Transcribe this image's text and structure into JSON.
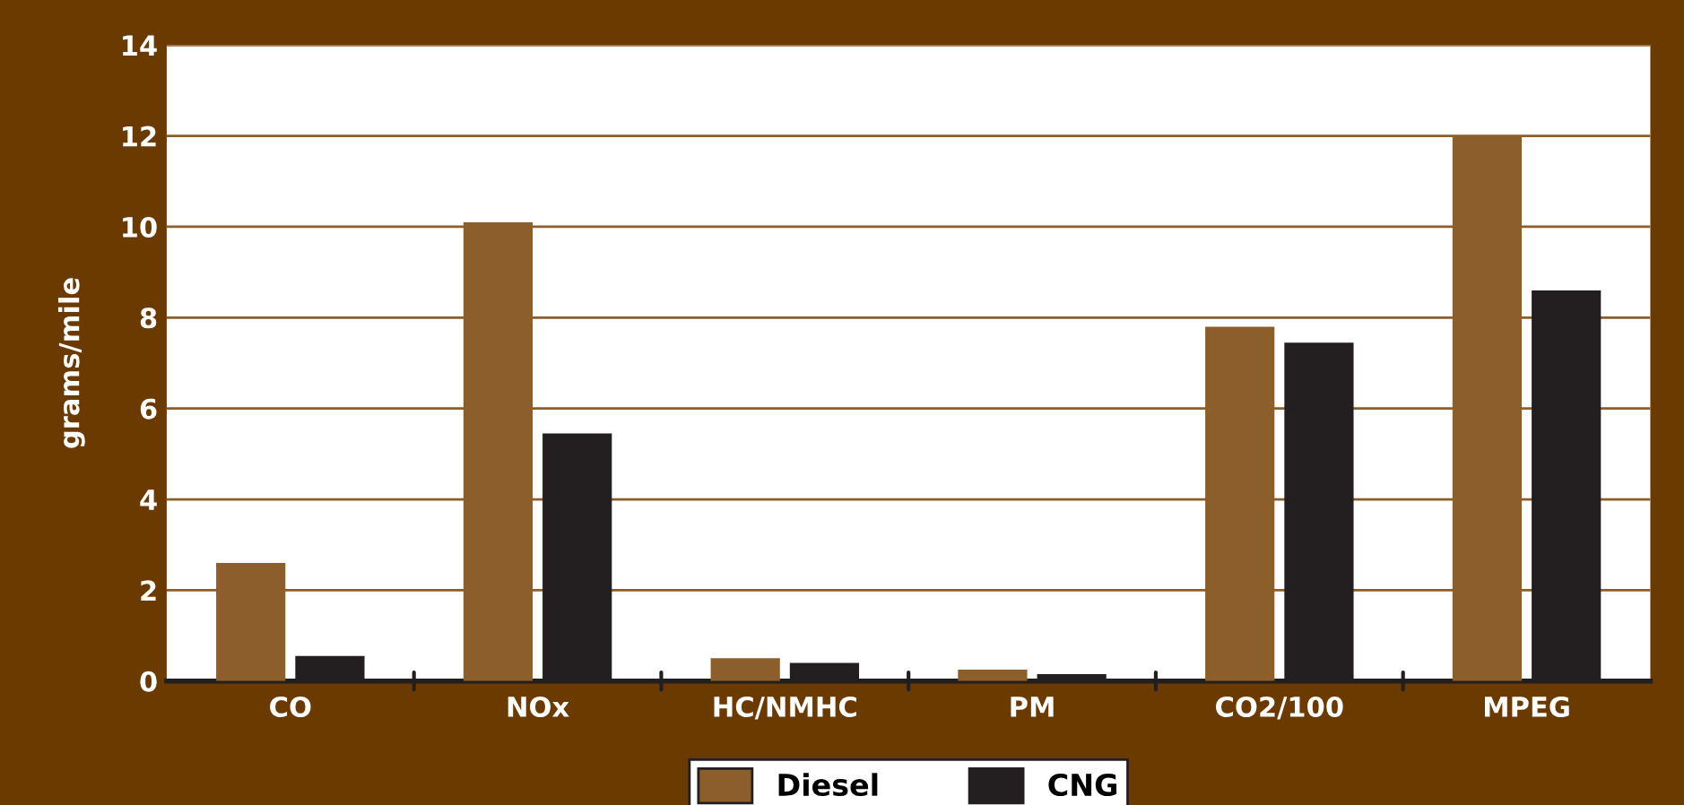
{
  "chart_data": {
    "type": "bar",
    "ylabel": "grams/mile",
    "categories": [
      "CO",
      "NOx",
      "HC/NMHC",
      "PM",
      "CO2/100",
      "MPEG"
    ],
    "series": [
      {
        "name": "Diesel",
        "color": "#8b5e2c",
        "values": [
          2.6,
          10.1,
          0.5,
          0.25,
          7.8,
          12.0
        ]
      },
      {
        "name": "CNG",
        "color": "#231f20",
        "values": [
          0.55,
          5.45,
          0.4,
          0.15,
          7.45,
          8.6
        ]
      }
    ],
    "ylim": [
      0,
      14
    ],
    "yticks": [
      0,
      2,
      4,
      6,
      8,
      10,
      12,
      14
    ],
    "grid": "y",
    "legend": "bottom"
  }
}
